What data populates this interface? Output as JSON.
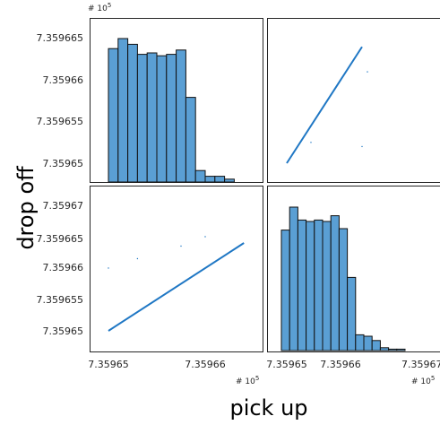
{
  "chart_data": {
    "type": "scatter-matrix",
    "xlabel": "pick up",
    "ylabel": "drop off",
    "axis_exponent": "# 10",
    "axis_exponent_power": "5",
    "bar_color": "#5a9fd4",
    "point_color": "#1f77c4",
    "x_ticks": [
      "7.35965",
      "7.35966",
      "7.35967"
    ],
    "y_ticks_top": [
      "7.359665",
      "7.35966",
      "7.359655",
      "7.35965"
    ],
    "y_ticks_bottom": [
      "7.35967",
      "7.359665",
      "7.35966",
      "7.359655",
      "7.35965"
    ],
    "hist_pickup": {
      "range": [
        7.35965,
        7.359663
      ],
      "counts": [
        0.93,
        1.0,
        0.96,
        0.89,
        0.9,
        0.88,
        0.89,
        0.92,
        0.59,
        0.08,
        0.04,
        0.04,
        0.02
      ]
    },
    "hist_dropoff": {
      "range": [
        7.359649,
        7.359672
      ],
      "counts": [
        0.84,
        1.0,
        0.91,
        0.9,
        0.91,
        0.9,
        0.94,
        0.85,
        0.51,
        0.11,
        0.1,
        0.07,
        0.02,
        0.01,
        0.01
      ]
    },
    "scatter_dropoff_vs_pickup": {
      "x_range": [
        7.35965,
        7.359664
      ],
      "y_range": [
        7.35965,
        7.359664
      ],
      "outliers": [
        [
          7.35966,
          7.359665
        ],
        [
          7.3596575,
          7.3596635
        ],
        [
          7.359653,
          7.3596615
        ],
        [
          7.35965,
          7.35966
        ]
      ]
    },
    "scatter_pickup_vs_dropoff": {
      "x_range": [
        7.35965,
        7.359664
      ],
      "y_range": [
        7.35965,
        7.359664
      ],
      "outliers": [
        [
          7.359665,
          7.359661
        ],
        [
          7.359664,
          7.359652
        ],
        [
          7.3596545,
          7.3596525
        ]
      ]
    }
  }
}
